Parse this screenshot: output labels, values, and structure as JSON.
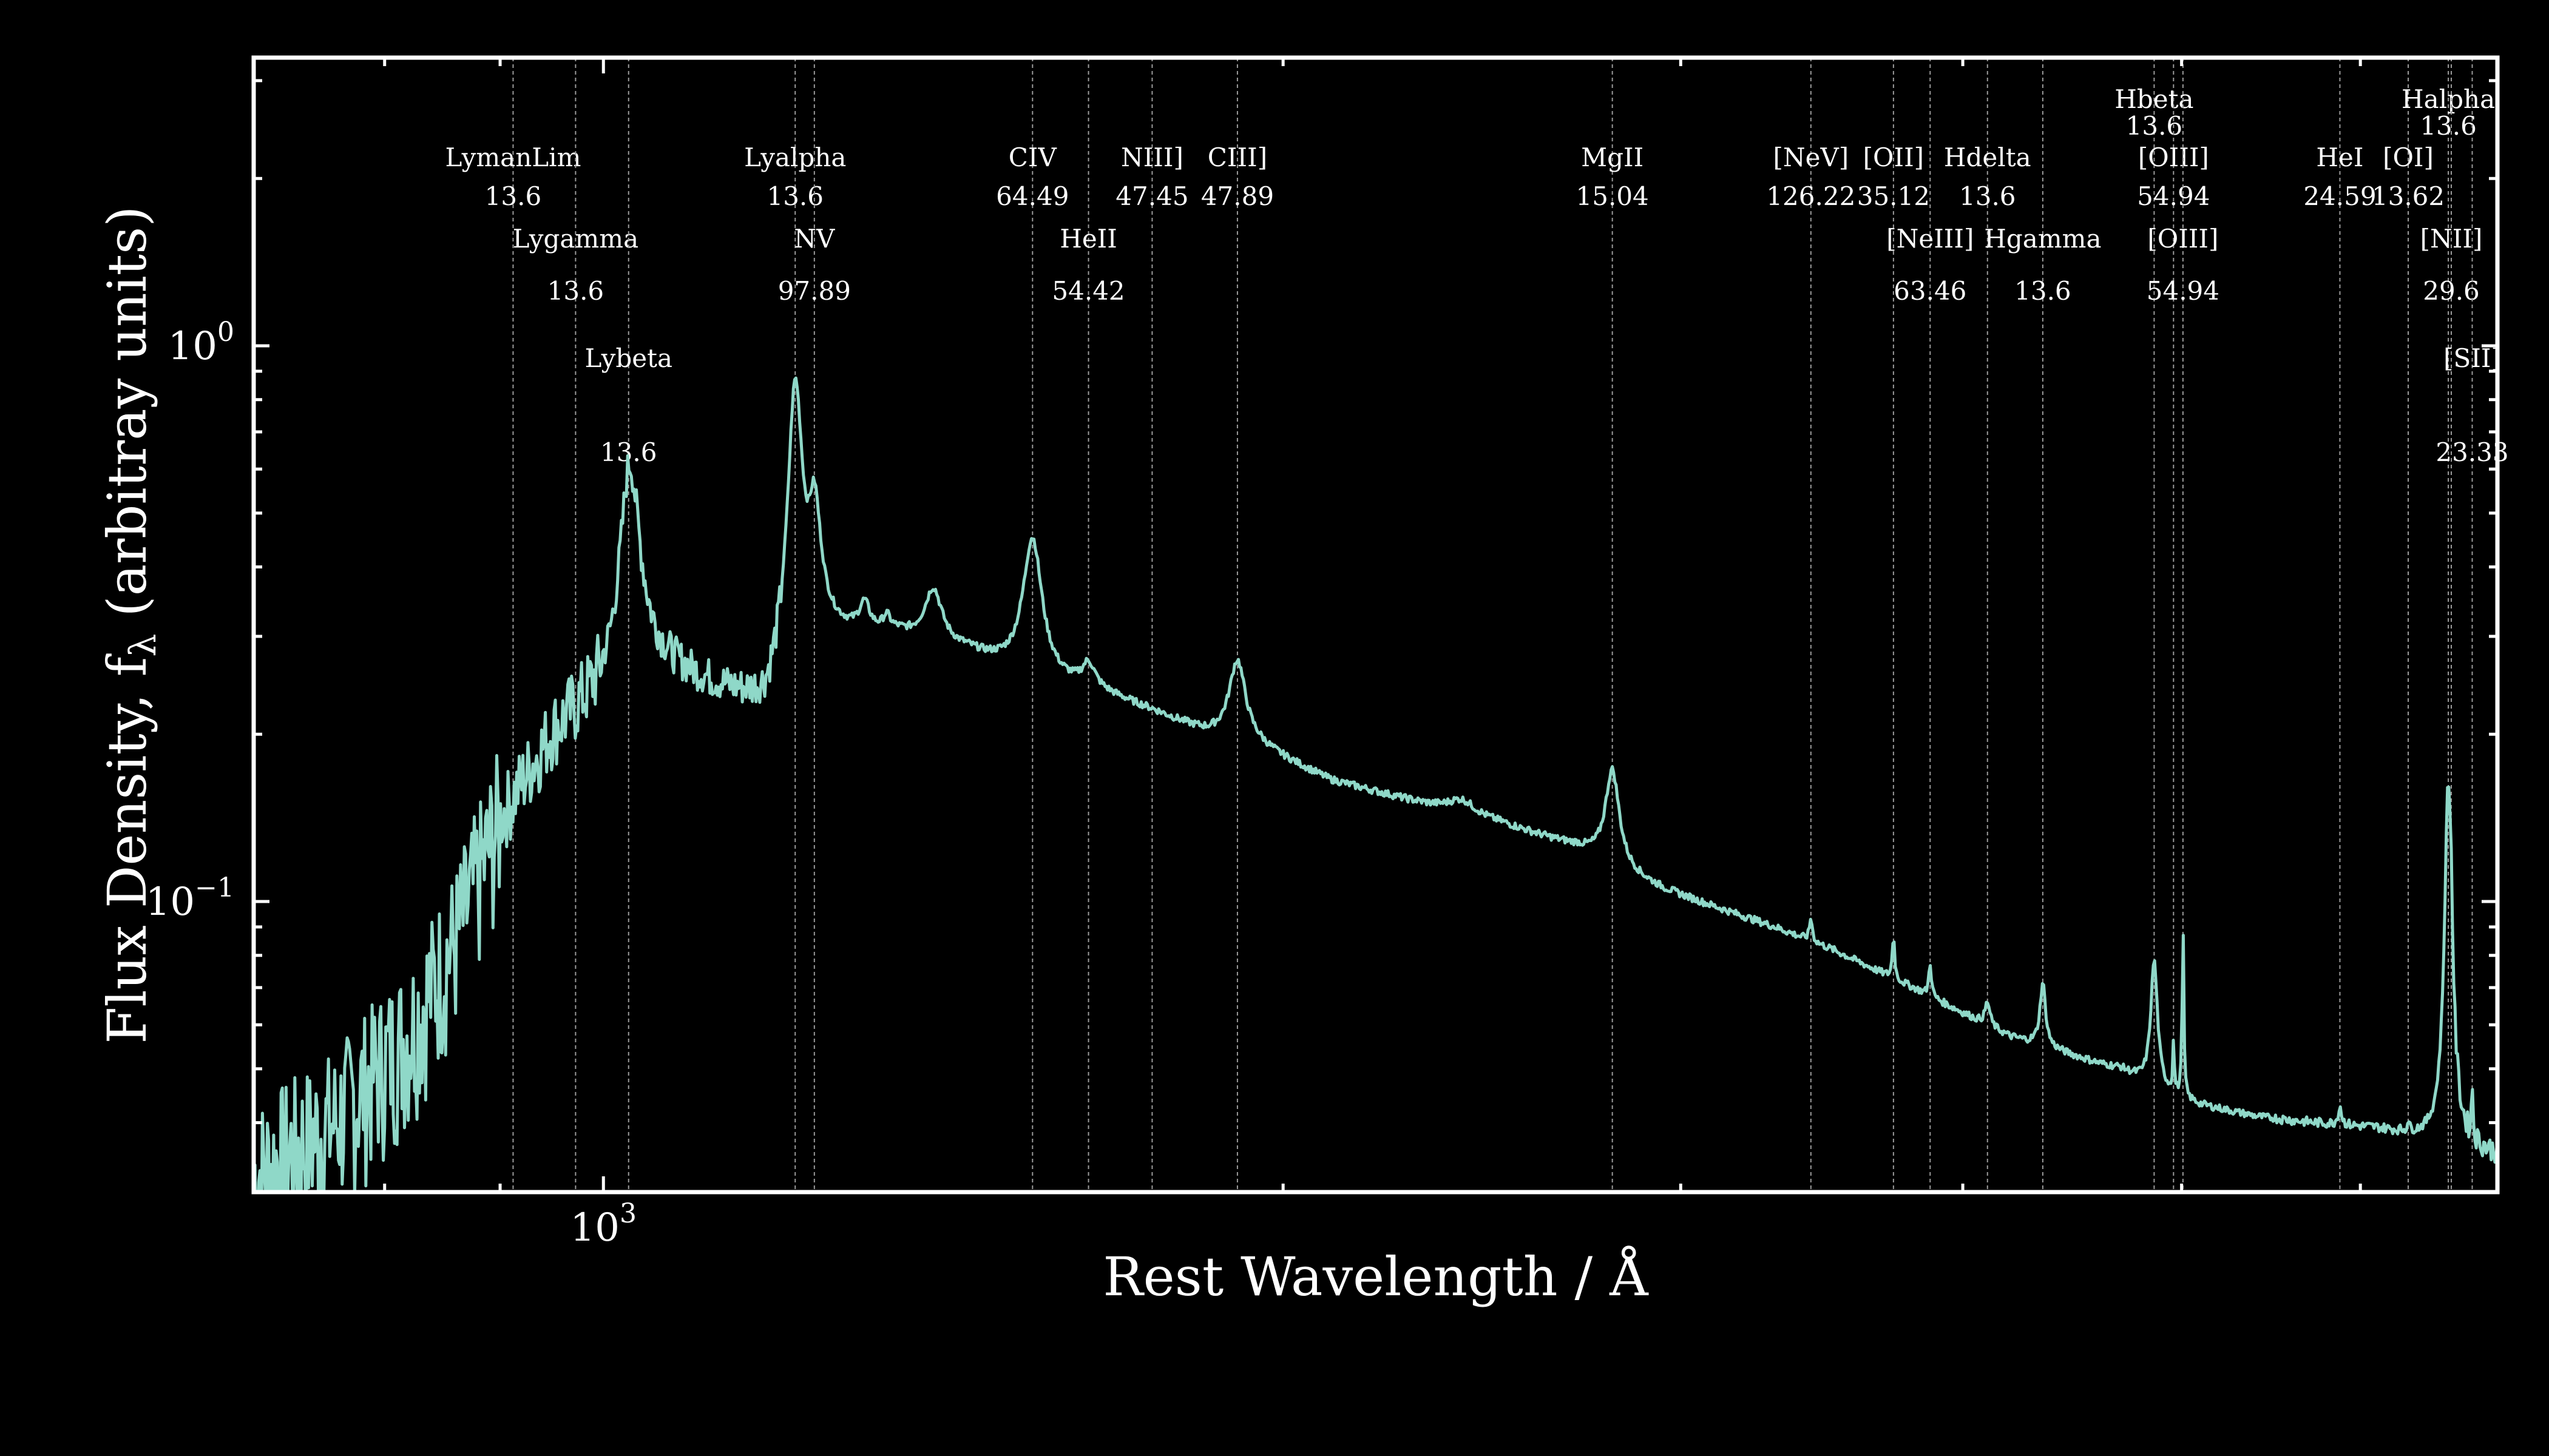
{
  "chart_data": {
    "type": "line",
    "title": "",
    "xlabel": "Rest Wavelength / Å",
    "ylabel": "Flux Density, f",
    "ylabel_subscript": "λ",
    "ylabel_suffix": " (arbitray units)",
    "xscale": "log",
    "yscale": "log",
    "xlim": [
      700,
      6900
    ],
    "ylim": [
      0.03,
      3.3
    ],
    "grid": false,
    "legend": "none",
    "line_color": "#8fd8c8",
    "marker_color": "#9a9a9a",
    "x_ticks": [
      {
        "base": "10",
        "exp": "3",
        "value": 1000
      }
    ],
    "y_ticks": [
      {
        "base": "10",
        "exp": "0",
        "value": 1
      },
      {
        "base": "10",
        "exp": "−1",
        "value": 0.1
      }
    ],
    "continuum": [
      [
        700,
        0.032
      ],
      [
        760,
        0.04
      ],
      [
        820,
        0.058
      ],
      [
        860,
        0.085
      ],
      [
        900,
        0.14
      ],
      [
        950,
        0.2
      ],
      [
        1000,
        0.24
      ],
      [
        1040,
        0.28
      ],
      [
        1100,
        0.25
      ],
      [
        1180,
        0.22
      ],
      [
        1250,
        0.3
      ],
      [
        1350,
        0.3
      ],
      [
        1450,
        0.28
      ],
      [
        1550,
        0.25
      ],
      [
        1650,
        0.24
      ],
      [
        1750,
        0.22
      ],
      [
        1850,
        0.2
      ],
      [
        1950,
        0.19
      ],
      [
        2100,
        0.165
      ],
      [
        2300,
        0.15
      ],
      [
        2500,
        0.138
      ],
      [
        2700,
        0.125
      ],
      [
        2800,
        0.115
      ],
      [
        2950,
        0.105
      ],
      [
        3100,
        0.098
      ],
      [
        3300,
        0.09
      ],
      [
        3500,
        0.082
      ],
      [
        3800,
        0.07
      ],
      [
        4000,
        0.063
      ],
      [
        4200,
        0.057
      ],
      [
        4400,
        0.054
      ],
      [
        4600,
        0.051
      ],
      [
        4700,
        0.05
      ],
      [
        4862,
        0.046
      ],
      [
        5100,
        0.043
      ],
      [
        5400,
        0.041
      ],
      [
        5700,
        0.04
      ],
      [
        6100,
        0.039
      ],
      [
        6500,
        0.037
      ],
      [
        6900,
        0.035
      ]
    ],
    "emission_lines": [
      {
        "center": 1027,
        "amp": 1.3,
        "width": 10
      },
      {
        "center": 1216,
        "amp": 2.3,
        "width": 9
      },
      {
        "center": 1240,
        "amp": 0.7,
        "width": 8
      },
      {
        "center": 1305,
        "amp": 0.12,
        "width": 8
      },
      {
        "center": 1335,
        "amp": 0.06,
        "width": 6
      },
      {
        "center": 1400,
        "amp": 0.25,
        "width": 14
      },
      {
        "center": 1549,
        "amp": 0.8,
        "width": 16
      },
      {
        "center": 1640,
        "amp": 0.1,
        "width": 12
      },
      {
        "center": 1909,
        "amp": 0.4,
        "width": 18
      },
      {
        "center": 2400,
        "amp": 0.06,
        "width": 40
      },
      {
        "center": 2798,
        "amp": 0.5,
        "width": 22
      },
      {
        "center": 3426,
        "amp": 0.1,
        "width": 6
      },
      {
        "center": 3727,
        "amp": 0.2,
        "width": 5
      },
      {
        "center": 3869,
        "amp": 0.15,
        "width": 6
      },
      {
        "center": 4102,
        "amp": 0.1,
        "width": 12
      },
      {
        "center": 4340,
        "amp": 0.3,
        "width": 14
      },
      {
        "center": 4862,
        "amp": 0.7,
        "width": 18
      },
      {
        "center": 4959,
        "amp": 0.25,
        "width": 4
      },
      {
        "center": 5007,
        "amp": 1.1,
        "width": 4
      },
      {
        "center": 5876,
        "amp": 0.08,
        "width": 12
      },
      {
        "center": 6300,
        "amp": 0.05,
        "width": 6
      },
      {
        "center": 6563,
        "amp": 3.5,
        "width": 22
      },
      {
        "center": 6583,
        "amp": 0.5,
        "width": 5
      },
      {
        "center": 6725,
        "amp": 0.25,
        "width": 6
      }
    ],
    "line_markers": [
      {
        "name": "LymanLim",
        "value": "13.6",
        "wavelength": 912,
        "row": 1
      },
      {
        "name": "Lygamma",
        "value": "13.6",
        "wavelength": 972,
        "row": 2
      },
      {
        "name": "Lybeta",
        "value": "13.6",
        "wavelength": 1026,
        "row": 3
      },
      {
        "name": "Lyalpha",
        "value": "13.6",
        "wavelength": 1216,
        "row": 1
      },
      {
        "name": "NV",
        "value": "97.89",
        "wavelength": 1240,
        "row": 2
      },
      {
        "name": "CIV",
        "value": "64.49",
        "wavelength": 1549,
        "row": 1
      },
      {
        "name": "HeII",
        "value": "54.42",
        "wavelength": 1640,
        "row": 2
      },
      {
        "name": "NIII]",
        "value": "47.45",
        "wavelength": 1750,
        "row": 1
      },
      {
        "name": "CIII]",
        "value": "47.89",
        "wavelength": 1909,
        "row": 1
      },
      {
        "name": "MgII",
        "value": "15.04",
        "wavelength": 2798,
        "row": 1
      },
      {
        "name": "[NeV]",
        "value": "126.22",
        "wavelength": 3426,
        "row": 1
      },
      {
        "name": "[OII]",
        "value": "35.12",
        "wavelength": 3727,
        "row": 1
      },
      {
        "name": "[NeIII]",
        "value": "63.46",
        "wavelength": 3869,
        "row": 2
      },
      {
        "name": "Hdelta",
        "value": "13.6",
        "wavelength": 4102,
        "row": 1
      },
      {
        "name": "Hgamma",
        "value": "13.6",
        "wavelength": 4340,
        "row": 2
      },
      {
        "name": "Hbeta",
        "value": "13.6",
        "wavelength": 4862,
        "row": 0
      },
      {
        "name": "[OIII]",
        "value": "54.94",
        "wavelength": 4959,
        "row": 1
      },
      {
        "name": "[OIII]",
        "value": "54.94",
        "wavelength": 5007,
        "row": 2
      },
      {
        "name": "HeI",
        "value": "24.59",
        "wavelength": 5876,
        "row": 1
      },
      {
        "name": "[OI]",
        "value": "13.62",
        "wavelength": 6300,
        "row": 1
      },
      {
        "name": "Halpha",
        "value": "13.6",
        "wavelength": 6563,
        "row": 0
      },
      {
        "name": "[NII]",
        "value": "29.6",
        "wavelength": 6583,
        "row": 2
      },
      {
        "name": "[SII]",
        "value": "23.33",
        "wavelength": 6725,
        "row": 3
      }
    ]
  }
}
